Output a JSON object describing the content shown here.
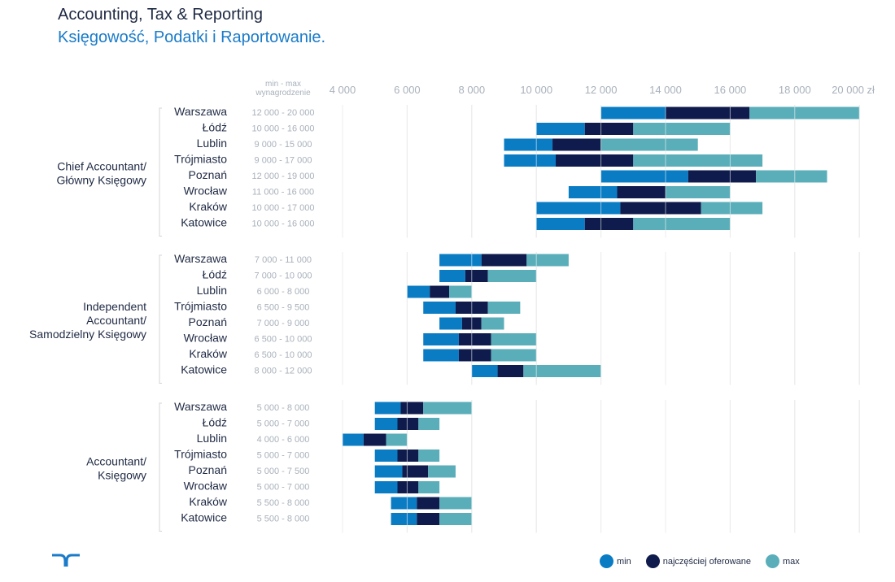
{
  "title_en": "Accounting, Tax & Reporting",
  "title_pl": "Księgowość, Podatki i Raportowanie.",
  "colors": {
    "min": "#0a7cc4",
    "mode": "#0f1b4c",
    "max": "#5aaeb9",
    "grid": "#d4d4d4",
    "text": "#1f2a44",
    "muted": "#a9b1bb"
  },
  "chart_data": {
    "type": "bar",
    "orientation": "horizontal-stacked",
    "range_header": "min - max wynagrodzenie",
    "x_ticks": [
      "4 000",
      "6 000",
      "8 000",
      "10 000",
      "12 000",
      "14 000",
      "16 000",
      "18 000",
      "20 000 zł"
    ],
    "x_tick_values": [
      4000,
      6000,
      8000,
      10000,
      12000,
      14000,
      16000,
      18000,
      20000
    ],
    "xlim": [
      4000,
      20000
    ],
    "legend": [
      {
        "key": "min",
        "label": "min"
      },
      {
        "key": "mode",
        "label": "najczęściej oferowane"
      },
      {
        "key": "max",
        "label": "max"
      }
    ],
    "legend_position": "bottom-right",
    "groups": [
      {
        "name": "Chief Accountant/\nGłówny Księgowy",
        "rows": [
          {
            "city": "Warszawa",
            "range": "12 000 - 20 000",
            "min": 12000,
            "mode_from": 14000,
            "mode_to": 16600,
            "max": 20000
          },
          {
            "city": "Łódź",
            "range": "10 000 - 16 000",
            "min": 10000,
            "mode_from": 11500,
            "mode_to": 13000,
            "max": 16000
          },
          {
            "city": "Lublin",
            "range": "9 000 - 15 000",
            "min": 9000,
            "mode_from": 10500,
            "mode_to": 12000,
            "max": 15000
          },
          {
            "city": "Trójmiasto",
            "range": "9 000 - 17 000",
            "min": 9000,
            "mode_from": 10600,
            "mode_to": 13000,
            "max": 17000
          },
          {
            "city": "Poznań",
            "range": "12 000 - 19 000",
            "min": 12000,
            "mode_from": 14700,
            "mode_to": 16800,
            "max": 19000
          },
          {
            "city": "Wrocław",
            "range": "11 000 - 16 000",
            "min": 11000,
            "mode_from": 12500,
            "mode_to": 14000,
            "max": 16000
          },
          {
            "city": "Kraków",
            "range": "10 000 - 17 000",
            "min": 10000,
            "mode_from": 12600,
            "mode_to": 15100,
            "max": 17000
          },
          {
            "city": "Katowice",
            "range": "10 000 - 16 000",
            "min": 10000,
            "mode_from": 11500,
            "mode_to": 13000,
            "max": 16000
          }
        ]
      },
      {
        "name": "Independent\nAccountant/\nSamodzielny Księgowy",
        "rows": [
          {
            "city": "Warszawa",
            "range": "7 000 - 11 000",
            "min": 7000,
            "mode_from": 8300,
            "mode_to": 9700,
            "max": 11000
          },
          {
            "city": "Łódź",
            "range": "7 000 - 10 000",
            "min": 7000,
            "mode_from": 7800,
            "mode_to": 8500,
            "max": 10000
          },
          {
            "city": "Lublin",
            "range": "6 000 - 8 000",
            "min": 6000,
            "mode_from": 6700,
            "mode_to": 7300,
            "max": 8000
          },
          {
            "city": "Trójmiasto",
            "range": "6 500 - 9 500",
            "min": 6500,
            "mode_from": 7500,
            "mode_to": 8500,
            "max": 9500
          },
          {
            "city": "Poznań",
            "range": "7 000 - 9 000",
            "min": 7000,
            "mode_from": 7700,
            "mode_to": 8300,
            "max": 9000
          },
          {
            "city": "Wrocław",
            "range": "6 500 - 10 000",
            "min": 6500,
            "mode_from": 7600,
            "mode_to": 8600,
            "max": 10000
          },
          {
            "city": "Kraków",
            "range": "6 500 - 10 000",
            "min": 6500,
            "mode_from": 7600,
            "mode_to": 8600,
            "max": 10000
          },
          {
            "city": "Katowice",
            "range": "8 000 - 12 000",
            "min": 8000,
            "mode_from": 8800,
            "mode_to": 9600,
            "max": 12000
          }
        ]
      },
      {
        "name": "Accountant/\nKsięgowy",
        "rows": [
          {
            "city": "Warszawa",
            "range": "5 000 - 8 000",
            "min": 5000,
            "mode_from": 5800,
            "mode_to": 6500,
            "max": 8000
          },
          {
            "city": "Łódź",
            "range": "5 000 - 7 000",
            "min": 5000,
            "mode_from": 5700,
            "mode_to": 6350,
            "max": 7000
          },
          {
            "city": "Lublin",
            "range": "4 000 - 6 000",
            "min": 4000,
            "mode_from": 4650,
            "mode_to": 5350,
            "max": 6000
          },
          {
            "city": "Trójmiasto",
            "range": "5 000 - 7 000",
            "min": 5000,
            "mode_from": 5700,
            "mode_to": 6350,
            "max": 7000
          },
          {
            "city": "Poznań",
            "range": "5 000 - 7 500",
            "min": 5000,
            "mode_from": 5850,
            "mode_to": 6650,
            "max": 7500
          },
          {
            "city": "Wrocław",
            "range": "5 000 - 7 000",
            "min": 5000,
            "mode_from": 5700,
            "mode_to": 6350,
            "max": 7000
          },
          {
            "city": "Kraków",
            "range": "5 500 - 8 000",
            "min": 5500,
            "mode_from": 6300,
            "mode_to": 7000,
            "max": 8000
          },
          {
            "city": "Katowice",
            "range": "5 500 - 8 000",
            "min": 5500,
            "mode_from": 6300,
            "mode_to": 7000,
            "max": 8000
          }
        ]
      }
    ]
  }
}
